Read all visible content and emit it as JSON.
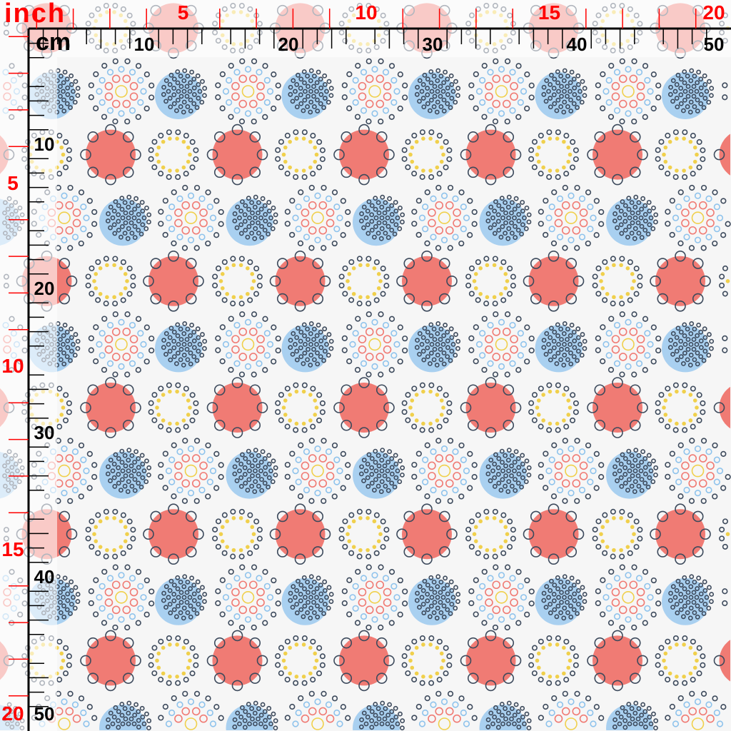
{
  "ruler": {
    "inch_unit": "inch",
    "cm_unit": "cm",
    "inch_labels": [
      "5",
      "10",
      "15",
      "20"
    ],
    "cm_labels": [
      "10",
      "20",
      "30",
      "40",
      "50"
    ],
    "inch_color": "#ff0000",
    "cm_color": "#000000"
  },
  "pattern": {
    "motifs": [
      "blue-dot-cluster",
      "concentric-burst",
      "red-disc-with-rings",
      "yellow-dot-ring"
    ],
    "colors": {
      "blue": "#a9d0f0",
      "red": "#f07b74",
      "navy": "#3d4a5c",
      "yellow": "#f0d04c",
      "light_blue": "#8fc3ec",
      "background": "#f6f6f6"
    }
  }
}
